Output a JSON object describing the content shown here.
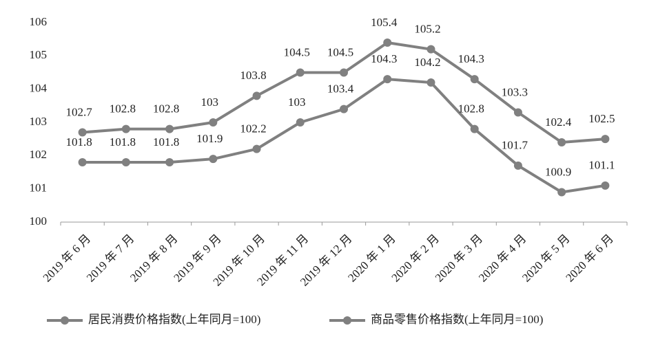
{
  "chart_data": {
    "type": "line",
    "categories": [
      "2019 年 6 月",
      "2019 年 7 月",
      "2019 年 8 月",
      "2019 年 9 月",
      "2019 年 10 月",
      "2019 年 11 月",
      "2019 年 12 月",
      "2020 年 1 月",
      "2020 年 2 月",
      "2020 年 3 月",
      "2020 年 4 月",
      "2020 年 5 月",
      "2020 年 6 月"
    ],
    "series": [
      {
        "name": "居民消费价格指数(上年同月=100)",
        "color": "#808080",
        "values": [
          102.7,
          102.8,
          102.8,
          103,
          103.8,
          104.5,
          104.5,
          105.4,
          105.2,
          104.3,
          103.3,
          102.4,
          102.5
        ]
      },
      {
        "name": "商品零售价格指数(上年同月=100)",
        "color": "#808080",
        "values": [
          101.8,
          101.8,
          101.8,
          101.9,
          102.2,
          103,
          103.4,
          104.3,
          104.2,
          102.8,
          101.7,
          100.9,
          101.1
        ]
      }
    ],
    "ylim": [
      100,
      106
    ],
    "yticks": [
      100,
      101,
      102,
      103,
      104,
      105,
      106
    ],
    "grid": false,
    "legend": "bottom"
  }
}
